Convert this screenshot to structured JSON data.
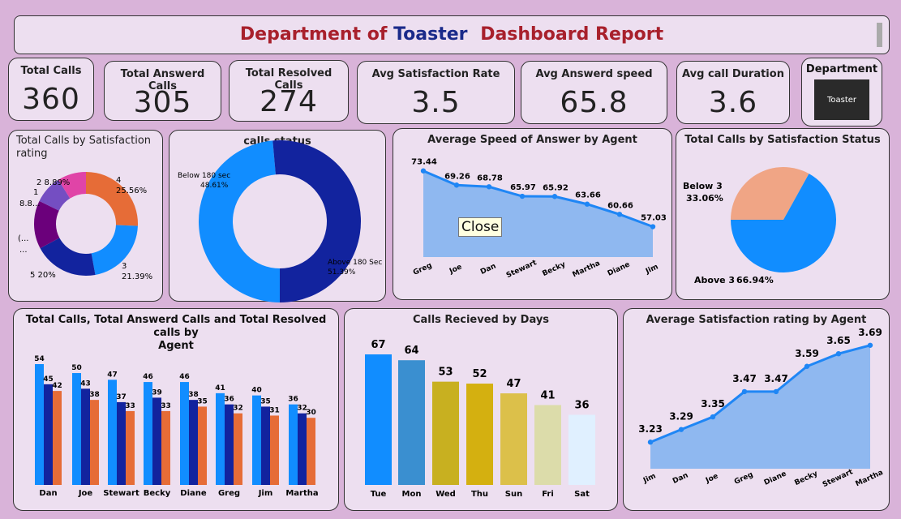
{
  "header": {
    "title_part1": "Department of",
    "title_part2": "Toaster",
    "title_part3": "Dashboard Report"
  },
  "kpis": [
    {
      "label": "Total Calls",
      "value": "360"
    },
    {
      "label": "Total Answerd Calls",
      "value": "305"
    },
    {
      "label": "Total Resolved Calls",
      "value": "274"
    },
    {
      "label": "Avg Satisfaction Rate",
      "value": "3.5"
    },
    {
      "label": "Avg Answerd speed",
      "value": "65.8"
    },
    {
      "label": "Avg call Duration",
      "value": "3.6"
    }
  ],
  "department": {
    "label": "Department",
    "button": "Toaster"
  },
  "tooltip": {
    "text": "Close"
  },
  "colors": {
    "title_red": "#a8202c",
    "title_blue": "#1a2a8a",
    "blue": "#118dff",
    "navy": "#12239e",
    "orange": "#e66c37",
    "purple": "#6b007b",
    "violet": "#744ec2",
    "pink": "#e044a7",
    "peach": "#f0a585",
    "area": "#8fb8f0",
    "line": "#1f86f5"
  },
  "chart_data": [
    {
      "type": "pie",
      "title": "Total Calls by Satisfaction rating",
      "donut": true,
      "slices": [
        {
          "name": "4",
          "label": "4",
          "pct_label": "25.56%",
          "value": 25.56
        },
        {
          "name": "3",
          "label": "3",
          "pct_label": "21.39%",
          "value": 21.39
        },
        {
          "name": "5",
          "label": "5 20%",
          "value": 20.0
        },
        {
          "name": "?",
          "label": "(...",
          "label2": "...",
          "value": 15.0
        },
        {
          "name": "1",
          "label": "1",
          "label2": "8.8...",
          "value": 8.8
        },
        {
          "name": "2",
          "label": "2 8.89%",
          "value": 8.89
        }
      ]
    },
    {
      "type": "pie",
      "title": "calls status",
      "donut": true,
      "slices": [
        {
          "name": "Below 180 sec",
          "pct_label": "48.61%",
          "value": 48.61
        },
        {
          "name": "Above 180 Sec",
          "pct_label": "51.39%",
          "value": 51.39
        }
      ]
    },
    {
      "type": "area",
      "title": "Average Speed of Answer by Agent",
      "categories": [
        "Greg",
        "Joe",
        "Dan",
        "Stewart",
        "Becky",
        "Martha",
        "Diane",
        "Jim"
      ],
      "values": [
        73.44,
        69.26,
        68.78,
        65.97,
        65.92,
        63.66,
        60.66,
        57.03
      ],
      "labels": [
        "73.44",
        "69.26",
        "68.78",
        "65.97",
        "65.92",
        "63.66",
        "60.66",
        "57.03"
      ],
      "ylim": [
        50,
        76
      ]
    },
    {
      "type": "pie",
      "title": "Total Calls by Satisfaction Status",
      "donut": false,
      "slices": [
        {
          "name": "Below 3",
          "pct_label": "33.06%",
          "value": 33.06
        },
        {
          "name": "Above 3",
          "pct_label": "66.94%",
          "value": 66.94
        }
      ]
    },
    {
      "type": "bar",
      "title_line1": "Total Calls, Total Answerd Calls and Total Resolved calls by",
      "title_line2": "Agent",
      "categories": [
        "Dan",
        "Joe",
        "Stewart",
        "Becky",
        "Diane",
        "Greg",
        "Jim",
        "Martha"
      ],
      "series": [
        {
          "name": "Total Calls",
          "values": [
            54,
            50,
            47,
            46,
            46,
            41,
            40,
            36
          ],
          "labels": [
            "54",
            "50",
            "47",
            "46",
            "46",
            "41",
            "40",
            "36"
          ]
        },
        {
          "name": "Total Answerd Calls",
          "values": [
            45,
            43,
            37,
            39,
            38,
            36,
            35,
            32
          ],
          "labels": [
            "45",
            "43",
            "37",
            "39",
            "38",
            "36",
            "35",
            "32"
          ]
        },
        {
          "name": "Total Resolved Calls",
          "values": [
            42,
            38,
            33,
            33,
            35,
            32,
            31,
            30
          ],
          "labels": [
            "42",
            "38",
            "33",
            "33",
            "35",
            "32",
            "31",
            "30"
          ]
        }
      ],
      "ylim": [
        0,
        60
      ]
    },
    {
      "type": "bar",
      "title": "Calls Recieved by Days",
      "categories": [
        "Tue",
        "Mon",
        "Wed",
        "Thu",
        "Sun",
        "Fri",
        "Sat"
      ],
      "values": [
        67,
        64,
        53,
        52,
        47,
        41,
        36
      ],
      "labels": [
        "67",
        "64",
        "53",
        "52",
        "47",
        "41",
        "36"
      ],
      "colors": [
        "#118dff",
        "#3a8fd0",
        "#c8b020",
        "#d4b010",
        "#dcc04a",
        "#dcdcaa",
        "#e0f0ff"
      ],
      "ylim": [
        0,
        75
      ]
    },
    {
      "type": "area",
      "title": "Average Satisfaction rating by Agent",
      "categories": [
        "Jim",
        "Dan",
        "Joe",
        "Greg",
        "Diane",
        "Becky",
        "Stewart",
        "Martha"
      ],
      "values": [
        3.23,
        3.29,
        3.35,
        3.47,
        3.47,
        3.59,
        3.65,
        3.69
      ],
      "labels": [
        "3.23",
        "3.29",
        "3.35",
        "3.47",
        "3.47",
        "3.59",
        "3.65",
        "3.69"
      ],
      "ylim": [
        3.15,
        3.72
      ]
    }
  ]
}
